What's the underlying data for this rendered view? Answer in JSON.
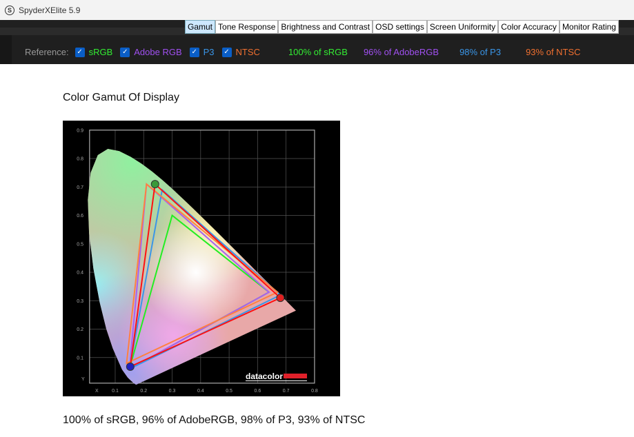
{
  "app": {
    "title": "SpyderXElite 5.9",
    "logo_letter": "S"
  },
  "tabs": [
    {
      "label": "Gamut",
      "active": true
    },
    {
      "label": "Tone Response"
    },
    {
      "label": "Brightness and Contrast"
    },
    {
      "label": "OSD settings"
    },
    {
      "label": "Screen Uniformity"
    },
    {
      "label": "Color Accuracy"
    },
    {
      "label": "Monitor Rating"
    }
  ],
  "reference": {
    "label": "Reference:",
    "items": [
      {
        "label": "sRGB",
        "checked": true,
        "color": "#33ee33"
      },
      {
        "label": "Adobe RGB",
        "checked": true,
        "color": "#a050f0"
      },
      {
        "label": "P3",
        "checked": true,
        "color": "#3a96e8"
      },
      {
        "label": "NTSC",
        "checked": true,
        "color": "#f07030"
      }
    ],
    "results": [
      {
        "text": "100% of sRGB",
        "color": "#33ee33"
      },
      {
        "text": "96% of AdobeRGB",
        "color": "#a050f0"
      },
      {
        "text": "98% of P3",
        "color": "#3a96e8"
      },
      {
        "text": "93% of NTSC",
        "color": "#f07030"
      }
    ]
  },
  "main": {
    "heading": "Color Gamut Of Display",
    "summary": "100% of sRGB, 96% of AdobeRGB, 98% of P3, 93% of NTSC"
  },
  "chart_data": {
    "type": "scatter",
    "title": "",
    "xlabel": "X",
    "ylabel": "Y",
    "xlim": [
      0,
      0.8
    ],
    "ylim": [
      0,
      0.9
    ],
    "grid": true,
    "xticks": [
      "0.1",
      "0.2",
      "0.3",
      "0.4",
      "0.5",
      "0.6",
      "0.7",
      "0.8"
    ],
    "yticks": [
      "0.1",
      "0.2",
      "0.3",
      "0.4",
      "0.5",
      "0.6",
      "0.7",
      "0.8",
      "0.9"
    ],
    "watermark": "datacolor",
    "gamuts": [
      {
        "name": "sRGB",
        "color": "#22ee22",
        "points": [
          [
            0.64,
            0.33
          ],
          [
            0.3,
            0.6
          ],
          [
            0.15,
            0.06
          ]
        ]
      },
      {
        "name": "Adobe RGB",
        "color": "#a860f0",
        "points": [
          [
            0.64,
            0.33
          ],
          [
            0.21,
            0.71
          ],
          [
            0.15,
            0.06
          ]
        ]
      },
      {
        "name": "P3",
        "color": "#3a96e8",
        "points": [
          [
            0.68,
            0.32
          ],
          [
            0.265,
            0.69
          ],
          [
            0.15,
            0.06
          ]
        ]
      },
      {
        "name": "NTSC",
        "color": "#ff8040",
        "points": [
          [
            0.67,
            0.33
          ],
          [
            0.21,
            0.71
          ],
          [
            0.14,
            0.08
          ]
        ]
      },
      {
        "name": "Display",
        "color": "#ff1010",
        "points": [
          [
            0.68,
            0.31
          ],
          [
            0.24,
            0.71
          ],
          [
            0.153,
            0.068
          ]
        ]
      }
    ]
  }
}
